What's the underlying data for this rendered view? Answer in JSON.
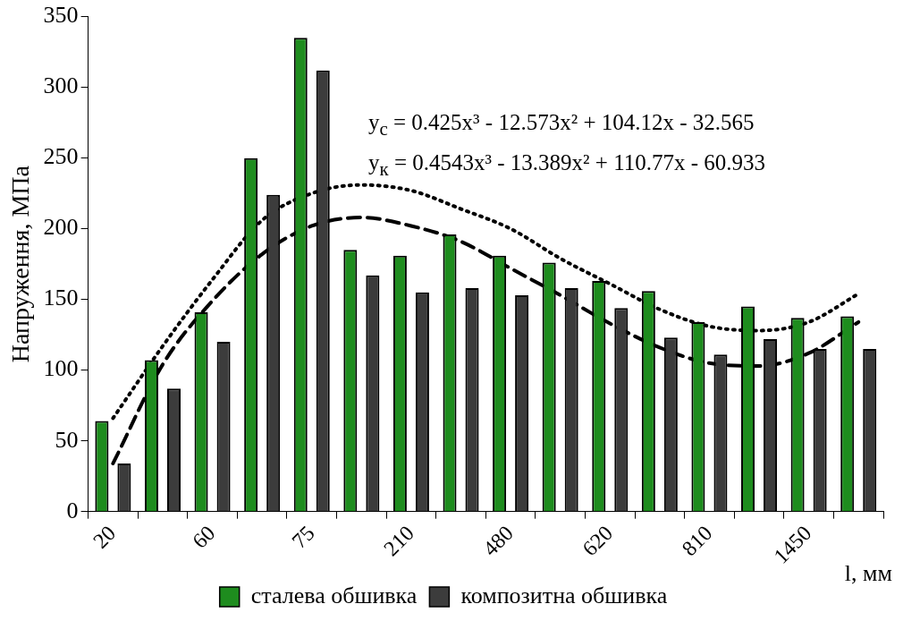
{
  "chart_data": {
    "type": "bar",
    "ylabel": "Напруження, МПа",
    "xlabel": "l, мм",
    "categories": [
      "20",
      null,
      "60",
      null,
      "75",
      null,
      "210",
      null,
      "480",
      null,
      "620",
      null,
      "810",
      null,
      "1450",
      null
    ],
    "series": [
      {
        "name": "сталева обшивка",
        "color": "#1e8c1e",
        "values": [
          64,
          107,
          141,
          250,
          335,
          185,
          181,
          196,
          181,
          176,
          163,
          156,
          134,
          145,
          137,
          138
        ]
      },
      {
        "name": "композитна обшивка",
        "color": "#3c3c3c",
        "values": [
          34,
          87,
          120,
          224,
          312,
          167,
          155,
          158,
          153,
          158,
          144,
          123,
          111,
          122,
          115,
          115
        ]
      },
      {
        "type": "line",
        "color": "#000000",
        "line_style": "dotted",
        "values": [
          66,
          117,
          164,
          206,
          225,
          231,
          227,
          214,
          200,
          179,
          161,
          143,
          131,
          128,
          134,
          154
        ]
      },
      {
        "type": "line",
        "color": "#000000",
        "line_style": "dashed",
        "values": [
          34,
          104,
          149,
          182,
          202,
          208,
          202,
          191,
          172,
          153,
          133,
          116,
          105,
          103,
          112,
          134
        ]
      }
    ],
    "ylim": [
      0,
      350
    ],
    "yticks": [
      0,
      50,
      100,
      150,
      200,
      250,
      300,
      350
    ],
    "grid": false,
    "legend": "bottom",
    "annotations": [
      "y$_{с}$ = 0.425x³ - 12.573x² + 104.12x - 32.565",
      "y$_{к}$ = 0.4543x³ - 13.389x² + 110.77x - 60.933"
    ]
  }
}
